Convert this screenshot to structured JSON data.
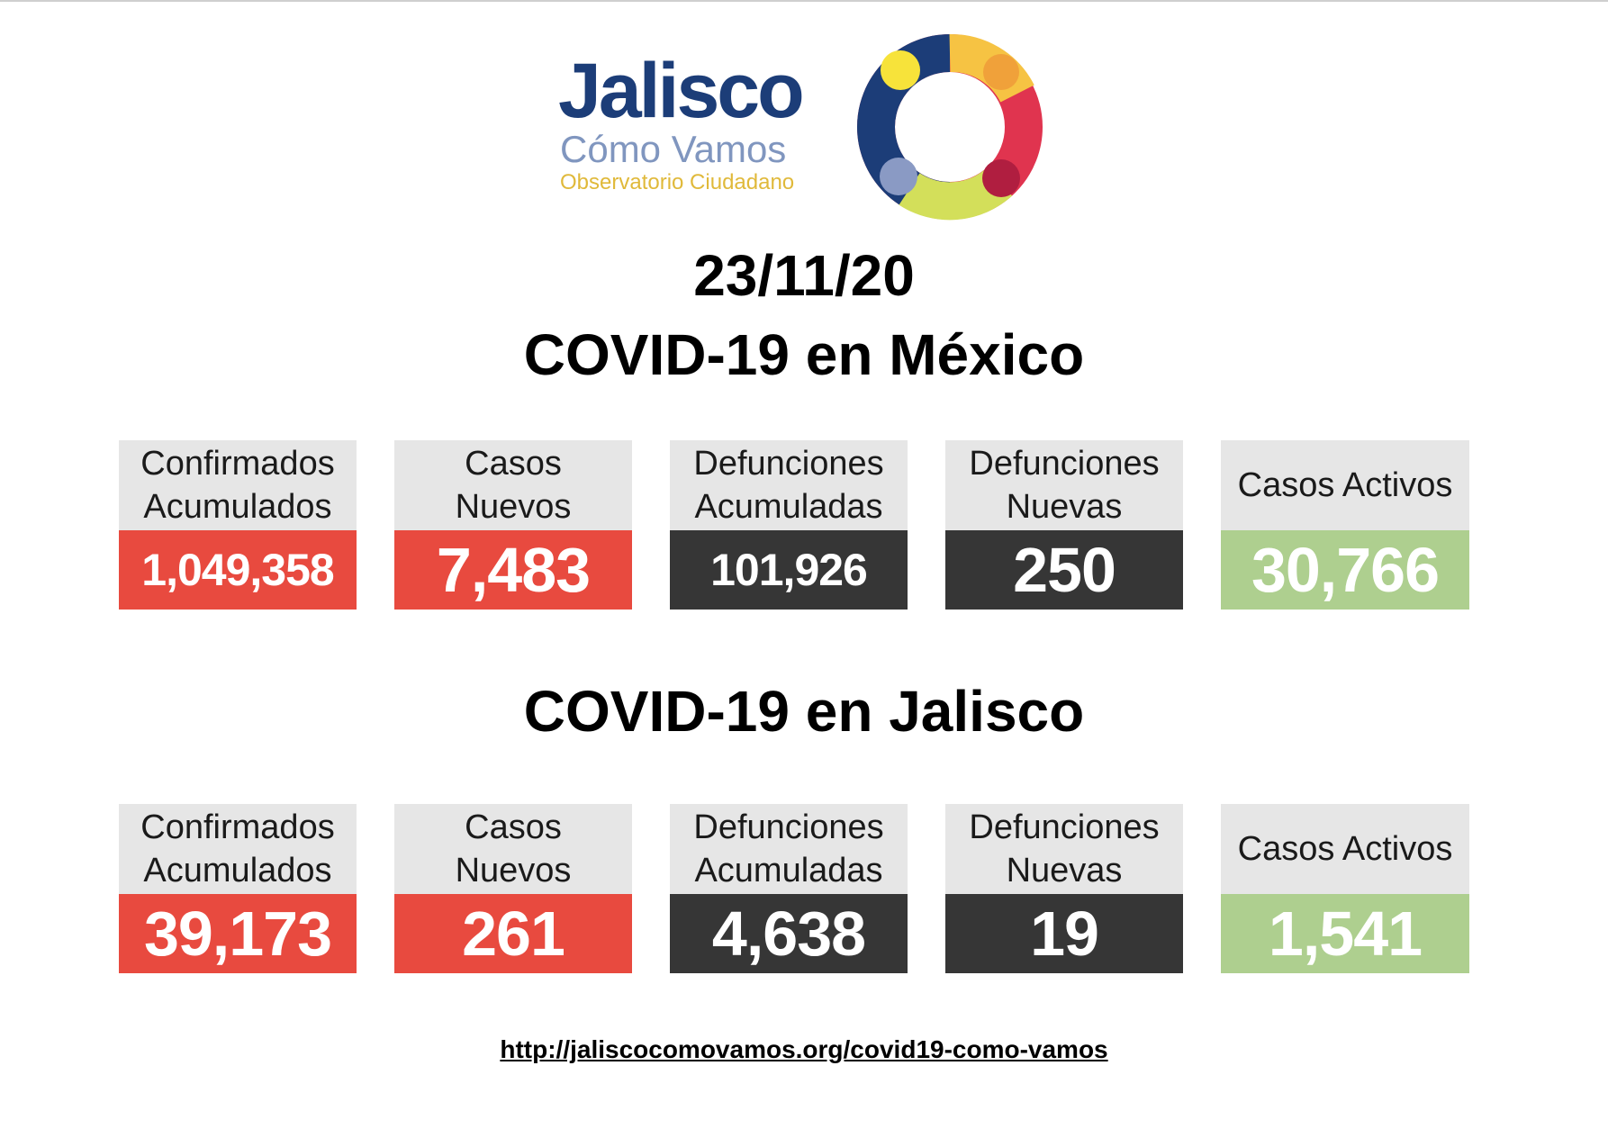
{
  "logo": {
    "title": "Jalisco",
    "subtitle": "Cómo Vamos",
    "tagline": "Observatorio Ciudadano",
    "colors": {
      "blue": "#1c3d78",
      "yellow": "#f6c343",
      "orange": "#f0a13a",
      "red": "#e0344f",
      "lime": "#d3df5a",
      "lavender": "#8096bf"
    }
  },
  "date": "23/11/20",
  "mexico": {
    "title": "COVID-19 en México",
    "stats": [
      {
        "label": "Confirmados\nAcumulados",
        "value": "1,049,358",
        "color": "#e84a3f"
      },
      {
        "label": "Casos\nNuevos",
        "value": "7,483",
        "color": "#e84a3f"
      },
      {
        "label": "Defunciones\nAcumuladas",
        "value": "101,926",
        "color": "#363636"
      },
      {
        "label": "Defunciones\nNuevas",
        "value": "250",
        "color": "#363636"
      },
      {
        "label": "Casos Activos",
        "value": "30,766",
        "color": "#aecf8f"
      }
    ]
  },
  "jalisco": {
    "title": "COVID-19 en Jalisco",
    "stats": [
      {
        "label": "Confirmados\nAcumulados",
        "value": "39,173",
        "color": "#e84a3f"
      },
      {
        "label": "Casos\nNuevos",
        "value": "261",
        "color": "#e84a3f"
      },
      {
        "label": "Defunciones\nAcumuladas",
        "value": "4,638",
        "color": "#363636"
      },
      {
        "label": "Defunciones\nNuevas",
        "value": "19",
        "color": "#363636"
      },
      {
        "label": "Casos Activos",
        "value": "1,541",
        "color": "#aecf8f"
      }
    ]
  },
  "footer": {
    "url": "http://jaliscocomovamos.org/covid19-como-vamos"
  }
}
